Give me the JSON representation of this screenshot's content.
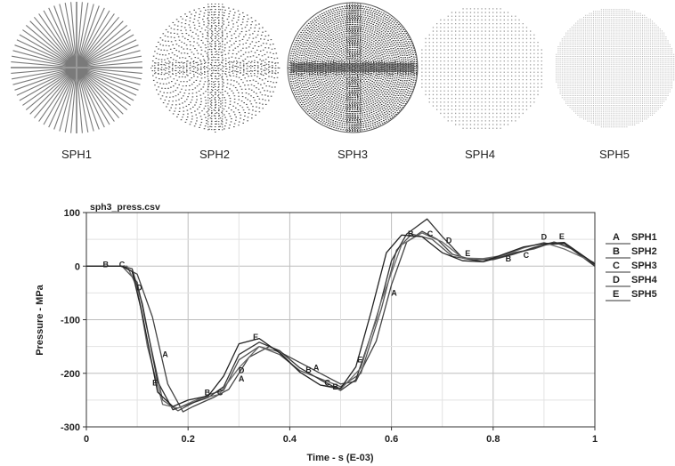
{
  "spheres": [
    {
      "label": "SPH1",
      "style": "radial-lines"
    },
    {
      "label": "SPH2",
      "style": "sparse-dots"
    },
    {
      "label": "SPH3",
      "style": "dense-dots"
    },
    {
      "label": "SPH4",
      "style": "grid-dots"
    },
    {
      "label": "SPH5",
      "style": "fine-grid"
    }
  ],
  "chart_data": {
    "type": "line",
    "title": "sph3_press.csv",
    "xlabel": "Time - s (E-03)",
    "ylabel": "Pressure - MPa",
    "xlim": [
      0,
      1
    ],
    "ylim": [
      -300,
      100
    ],
    "xticks": [
      "0",
      "0.2",
      "0.4",
      "0.6",
      "0.8",
      "1"
    ],
    "yticks": [
      "100",
      "0",
      "-100",
      "-200",
      "-300"
    ],
    "grid": true,
    "legend_position": "right",
    "series": [
      {
        "marker": "A",
        "name": "SPH1",
        "color": "#444444",
        "x": [
          0,
          0.07,
          0.1,
          0.13,
          0.16,
          0.19,
          0.21,
          0.25,
          0.28,
          0.32,
          0.36,
          0.4,
          0.44,
          0.48,
          0.5,
          0.53,
          0.57,
          0.6,
          0.63,
          0.66,
          0.69,
          0.72,
          0.76,
          0.8,
          0.84,
          0.88,
          0.92,
          0.95,
          1.0
        ],
        "y": [
          0,
          0,
          -15,
          -95,
          -220,
          -272,
          -262,
          -245,
          -230,
          -170,
          -150,
          -170,
          -190,
          -210,
          -220,
          -215,
          -140,
          -35,
          45,
          65,
          50,
          22,
          12,
          12,
          22,
          35,
          45,
          35,
          2
        ]
      },
      {
        "marker": "B",
        "name": "SPH2",
        "color": "#555555",
        "x": [
          0,
          0.07,
          0.1,
          0.12,
          0.15,
          0.18,
          0.21,
          0.24,
          0.27,
          0.3,
          0.34,
          0.38,
          0.42,
          0.46,
          0.5,
          0.54,
          0.58,
          0.61,
          0.64,
          0.68,
          0.72,
          0.76,
          0.8,
          0.84,
          0.88,
          0.92,
          0.96,
          1.0
        ],
        "y": [
          0,
          0,
          -30,
          -120,
          -250,
          -270,
          -255,
          -240,
          -232,
          -175,
          -150,
          -165,
          -195,
          -210,
          -225,
          -200,
          -80,
          30,
          60,
          50,
          18,
          12,
          15,
          25,
          32,
          45,
          30,
          4
        ]
      },
      {
        "marker": "C",
        "name": "SPH3",
        "color": "#333333",
        "x": [
          0,
          0.07,
          0.09,
          0.11,
          0.14,
          0.17,
          0.2,
          0.24,
          0.27,
          0.3,
          0.34,
          0.38,
          0.42,
          0.46,
          0.5,
          0.53,
          0.57,
          0.6,
          0.63,
          0.67,
          0.7,
          0.74,
          0.78,
          0.82,
          0.86,
          0.9,
          0.94,
          1.0
        ],
        "y": [
          0,
          0,
          -5,
          -70,
          -215,
          -268,
          -258,
          -245,
          -225,
          -165,
          -142,
          -158,
          -190,
          -212,
          -232,
          -212,
          -100,
          10,
          60,
          88,
          55,
          15,
          8,
          18,
          28,
          40,
          42,
          0
        ]
      },
      {
        "marker": "D",
        "name": "SPH4",
        "color": "#6a6a6a",
        "x": [
          0,
          0.08,
          0.1,
          0.12,
          0.15,
          0.18,
          0.22,
          0.26,
          0.3,
          0.34,
          0.38,
          0.42,
          0.46,
          0.5,
          0.54,
          0.58,
          0.62,
          0.66,
          0.7,
          0.74,
          0.78,
          0.82,
          0.86,
          0.9,
          0.94,
          1.0
        ],
        "y": [
          0,
          0,
          -40,
          -150,
          -258,
          -265,
          -248,
          -240,
          -190,
          -150,
          -160,
          -198,
          -222,
          -230,
          -190,
          -65,
          40,
          62,
          45,
          15,
          14,
          20,
          34,
          44,
          32,
          6
        ]
      },
      {
        "marker": "E",
        "name": "SPH5",
        "color": "#222222",
        "x": [
          0,
          0.07,
          0.09,
          0.11,
          0.14,
          0.17,
          0.2,
          0.24,
          0.27,
          0.3,
          0.34,
          0.38,
          0.42,
          0.46,
          0.5,
          0.53,
          0.56,
          0.59,
          0.62,
          0.66,
          0.7,
          0.74,
          0.78,
          0.82,
          0.86,
          0.9,
          0.94,
          1.0
        ],
        "y": [
          0,
          0,
          -10,
          -90,
          -235,
          -262,
          -250,
          -242,
          -205,
          -145,
          -135,
          -162,
          -198,
          -222,
          -228,
          -188,
          -85,
          25,
          58,
          55,
          25,
          10,
          8,
          22,
          36,
          42,
          44,
          4
        ]
      }
    ],
    "marker_labels": [
      {
        "text": "A",
        "x": 0.155,
        "y": -165
      },
      {
        "text": "A",
        "x": 0.305,
        "y": -210
      },
      {
        "text": "A",
        "x": 0.452,
        "y": -190
      },
      {
        "text": "A",
        "x": 0.605,
        "y": -50
      },
      {
        "text": "B",
        "x": 0.038,
        "y": 3
      },
      {
        "text": "B",
        "x": 0.238,
        "y": -236
      },
      {
        "text": "B",
        "x": 0.437,
        "y": -194
      },
      {
        "text": "B",
        "x": 0.49,
        "y": -225
      },
      {
        "text": "B",
        "x": 0.638,
        "y": 60
      },
      {
        "text": "B",
        "x": 0.83,
        "y": 14
      },
      {
        "text": "C",
        "x": 0.07,
        "y": 3
      },
      {
        "text": "C",
        "x": 0.263,
        "y": -236
      },
      {
        "text": "C",
        "x": 0.474,
        "y": -218
      },
      {
        "text": "C",
        "x": 0.676,
        "y": 60
      },
      {
        "text": "C",
        "x": 0.865,
        "y": 20
      },
      {
        "text": "D",
        "x": 0.104,
        "y": -40
      },
      {
        "text": "D",
        "x": 0.305,
        "y": -195
      },
      {
        "text": "D",
        "x": 0.713,
        "y": 48
      },
      {
        "text": "D",
        "x": 0.9,
        "y": 54
      },
      {
        "text": "E",
        "x": 0.135,
        "y": -218
      },
      {
        "text": "E",
        "x": 0.333,
        "y": -132
      },
      {
        "text": "E",
        "x": 0.538,
        "y": -175
      },
      {
        "text": "E",
        "x": 0.75,
        "y": 24
      },
      {
        "text": "E",
        "x": 0.935,
        "y": 55
      }
    ]
  }
}
